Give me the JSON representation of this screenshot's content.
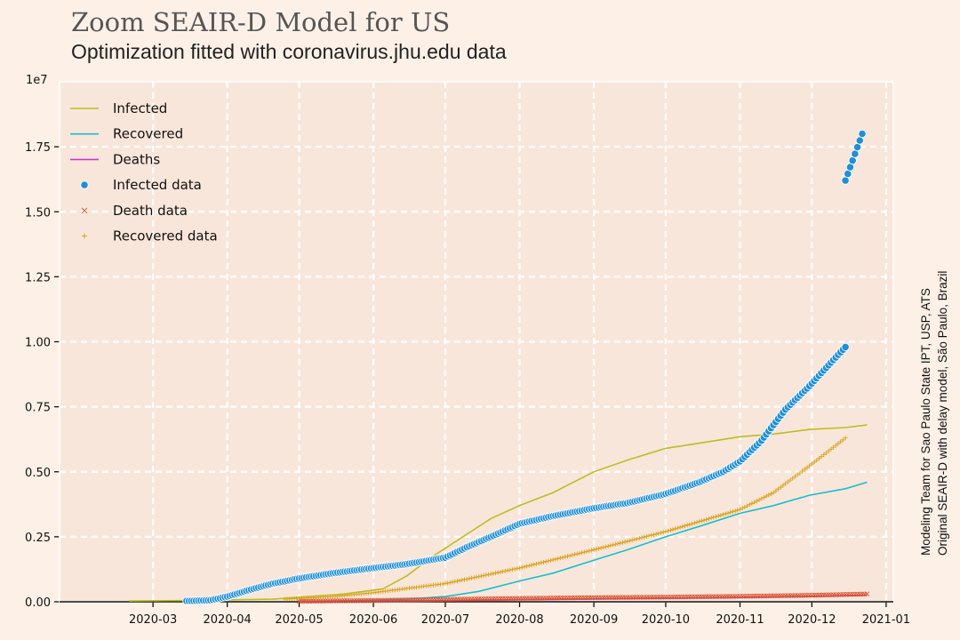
{
  "title": "Zoom SEAIR-D Model for US",
  "subtitle": "Optimization fitted with coronavirus.jhu.edu data",
  "side_note": {
    "line1": "Modeling Team for Sao Paulo State IPT, USP, ATS",
    "line2": "Original SEAIR-D with delay model, São Paulo, Brazil"
  },
  "colors": {
    "background": "#fdf1e7",
    "plot_bg": "#f9e6da",
    "grid": "#ffffff",
    "infected_model": "#bcbd22",
    "recovered_model": "#17becf",
    "deaths_model": "#c23ad0",
    "infected_data": "#1f8fd6",
    "death_data": "#d9532b",
    "recovered_data": "#d8a21a"
  },
  "chart_data": {
    "type": "line",
    "y_scale_label": "1e7",
    "y_multiplier": 10000000,
    "xlim": [
      "2020-01-22",
      "2021-01-04"
    ],
    "ylim": [
      0,
      2.0
    ],
    "grid": true,
    "legend_position": "top-left",
    "x_ticks": [
      "2020-03",
      "2020-04",
      "2020-05",
      "2020-06",
      "2020-07",
      "2020-08",
      "2020-09",
      "2020-10",
      "2020-11",
      "2020-12",
      "2021-01"
    ],
    "x_tick_dates": [
      "2020-03-01",
      "2020-04-01",
      "2020-05-01",
      "2020-06-01",
      "2020-07-01",
      "2020-08-01",
      "2020-09-01",
      "2020-10-01",
      "2020-11-01",
      "2020-12-01",
      "2021-01-01"
    ],
    "y_ticks": [
      0,
      0.25,
      0.5,
      0.75,
      1.0,
      1.25,
      1.5,
      1.75
    ],
    "y_tick_labels": [
      "0.00",
      "0.25",
      "0.50",
      "0.75",
      "1.00",
      "1.25",
      "1.50",
      "1.75"
    ],
    "series": [
      {
        "name": "Infected",
        "kind": "line",
        "points": [
          [
            "2020-02-20",
            0.003
          ],
          [
            "2020-03-20",
            0.005
          ],
          [
            "2020-04-20",
            0.01
          ],
          [
            "2020-05-20",
            0.03
          ],
          [
            "2020-06-05",
            0.05
          ],
          [
            "2020-06-15",
            0.1
          ],
          [
            "2020-06-25",
            0.17
          ],
          [
            "2020-07-10",
            0.26
          ],
          [
            "2020-07-20",
            0.32
          ],
          [
            "2020-08-01",
            0.37
          ],
          [
            "2020-08-15",
            0.42
          ],
          [
            "2020-09-01",
            0.5
          ],
          [
            "2020-09-15",
            0.545
          ],
          [
            "2020-10-01",
            0.59
          ],
          [
            "2020-10-15",
            0.61
          ],
          [
            "2020-11-01",
            0.635
          ],
          [
            "2020-11-15",
            0.645
          ],
          [
            "2020-11-30",
            0.663
          ],
          [
            "2020-12-15",
            0.67
          ],
          [
            "2020-12-24",
            0.68
          ]
        ]
      },
      {
        "name": "Recovered",
        "kind": "line",
        "points": [
          [
            "2020-05-15",
            0.002
          ],
          [
            "2020-06-15",
            0.01
          ],
          [
            "2020-07-01",
            0.02
          ],
          [
            "2020-07-15",
            0.04
          ],
          [
            "2020-08-01",
            0.08
          ],
          [
            "2020-08-15",
            0.11
          ],
          [
            "2020-09-01",
            0.16
          ],
          [
            "2020-09-15",
            0.2
          ],
          [
            "2020-10-01",
            0.25
          ],
          [
            "2020-10-15",
            0.29
          ],
          [
            "2020-11-01",
            0.34
          ],
          [
            "2020-11-15",
            0.37
          ],
          [
            "2020-11-30",
            0.41
          ],
          [
            "2020-12-15",
            0.435
          ],
          [
            "2020-12-24",
            0.46
          ]
        ]
      },
      {
        "name": "Deaths",
        "kind": "line",
        "points": [
          [
            "2020-05-01",
            0.001
          ],
          [
            "2020-06-01",
            0.003
          ],
          [
            "2020-07-01",
            0.005
          ],
          [
            "2020-08-01",
            0.008
          ],
          [
            "2020-09-01",
            0.011
          ],
          [
            "2020-10-01",
            0.014
          ],
          [
            "2020-11-01",
            0.017
          ],
          [
            "2020-12-01",
            0.021
          ],
          [
            "2020-12-24",
            0.025
          ]
        ]
      },
      {
        "name": "Infected data",
        "kind": "points",
        "points": [
          [
            "2020-03-15",
            0.003
          ],
          [
            "2020-03-25",
            0.006
          ],
          [
            "2020-04-01",
            0.02
          ],
          [
            "2020-04-10",
            0.045
          ],
          [
            "2020-04-20",
            0.07
          ],
          [
            "2020-05-01",
            0.09
          ],
          [
            "2020-05-15",
            0.11
          ],
          [
            "2020-06-01",
            0.13
          ],
          [
            "2020-06-15",
            0.145
          ],
          [
            "2020-07-01",
            0.17
          ],
          [
            "2020-07-10",
            0.21
          ],
          [
            "2020-07-20",
            0.25
          ],
          [
            "2020-08-01",
            0.3
          ],
          [
            "2020-08-15",
            0.33
          ],
          [
            "2020-09-01",
            0.36
          ],
          [
            "2020-09-15",
            0.38
          ],
          [
            "2020-10-01",
            0.415
          ],
          [
            "2020-10-15",
            0.46
          ],
          [
            "2020-10-25",
            0.5
          ],
          [
            "2020-11-01",
            0.54
          ],
          [
            "2020-11-10",
            0.62
          ],
          [
            "2020-11-20",
            0.74
          ],
          [
            "2020-11-30",
            0.83
          ],
          [
            "2020-12-10",
            0.93
          ],
          [
            "2020-12-15",
            0.98
          ]
        ]
      },
      {
        "name": "Infected data",
        "kind": "points",
        "points": [
          [
            "2020-12-15",
            1.62
          ],
          [
            "2020-12-22",
            1.8
          ]
        ]
      },
      {
        "name": "Death data",
        "kind": "x",
        "points": [
          [
            "2020-05-01",
            0.002
          ],
          [
            "2020-06-01",
            0.005
          ],
          [
            "2020-07-01",
            0.009
          ],
          [
            "2020-08-01",
            0.013
          ],
          [
            "2020-09-01",
            0.016
          ],
          [
            "2020-10-01",
            0.018
          ],
          [
            "2020-11-01",
            0.021
          ],
          [
            "2020-12-01",
            0.025
          ],
          [
            "2020-12-24",
            0.03
          ]
        ]
      },
      {
        "name": "Recovered data",
        "kind": "plus",
        "points": [
          [
            "2020-04-25",
            0.01
          ],
          [
            "2020-05-15",
            0.02
          ],
          [
            "2020-06-01",
            0.035
          ],
          [
            "2020-07-01",
            0.07
          ],
          [
            "2020-08-01",
            0.13
          ],
          [
            "2020-09-01",
            0.2
          ],
          [
            "2020-10-01",
            0.27
          ],
          [
            "2020-11-01",
            0.355
          ],
          [
            "2020-11-15",
            0.42
          ],
          [
            "2020-12-01",
            0.53
          ],
          [
            "2020-12-15",
            0.63
          ]
        ]
      }
    ]
  }
}
